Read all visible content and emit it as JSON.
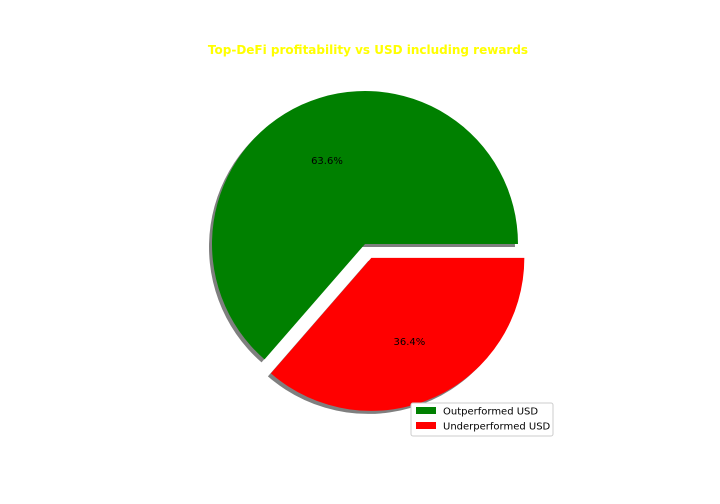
{
  "chart_data": {
    "type": "pie",
    "title": "Top-DeFi profitability vs USD including rewards",
    "title_color": "#ffff00",
    "categories": [
      "Outperformed USD",
      "Underperformed USD"
    ],
    "values": [
      63.6,
      36.4
    ],
    "labels": [
      "63.6%",
      "36.4%"
    ],
    "colors": [
      "#008000",
      "#ff0000"
    ],
    "explode": [
      0,
      0.1
    ],
    "shadow": true,
    "start_angle_deg": 0,
    "legend_position": "lower-right"
  }
}
